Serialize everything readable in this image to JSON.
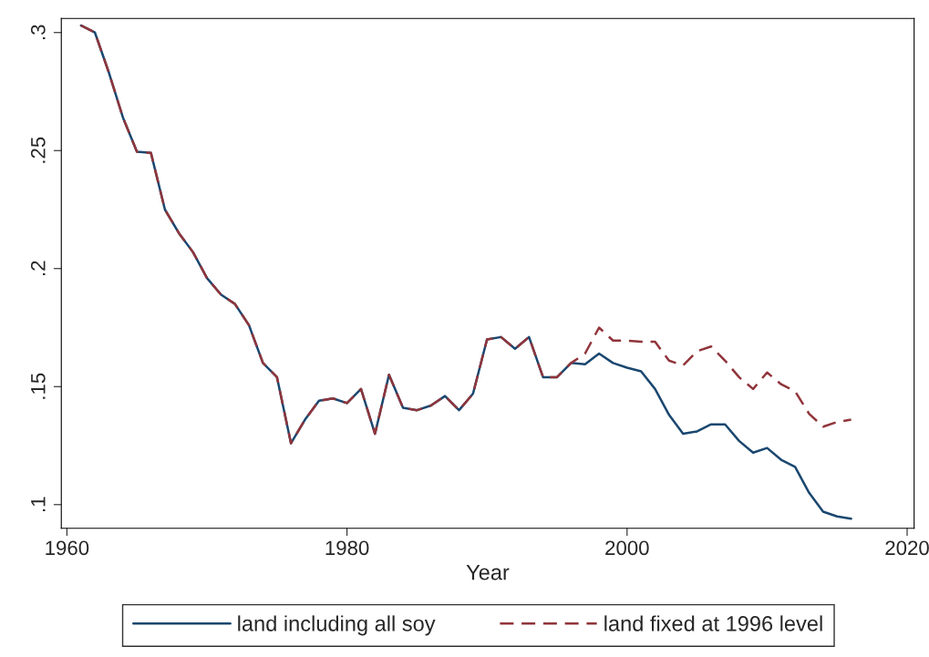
{
  "chart_data": {
    "type": "line",
    "xlabel": "Year",
    "x": [
      1961,
      1962,
      1963,
      1964,
      1965,
      1966,
      1967,
      1968,
      1969,
      1970,
      1971,
      1972,
      1973,
      1974,
      1975,
      1976,
      1977,
      1978,
      1979,
      1980,
      1981,
      1982,
      1983,
      1984,
      1985,
      1986,
      1987,
      1988,
      1989,
      1990,
      1991,
      1992,
      1993,
      1994,
      1995,
      1996,
      1997,
      1998,
      1999,
      2000,
      2001,
      2002,
      2003,
      2004,
      2005,
      2006,
      2007,
      2008,
      2009,
      2010,
      2011,
      2012,
      2013,
      2014,
      2015,
      2016
    ],
    "series": [
      {
        "name": "land including all soy",
        "color": "#1a476f",
        "line_style": "solid",
        "values": [
          0.303,
          0.3,
          0.283,
          0.264,
          0.2495,
          0.249,
          0.225,
          0.215,
          0.207,
          0.196,
          0.189,
          0.185,
          0.176,
          0.16,
          0.154,
          0.126,
          0.136,
          0.144,
          0.145,
          0.143,
          0.149,
          0.13,
          0.155,
          0.141,
          0.14,
          0.142,
          0.146,
          0.14,
          0.147,
          0.17,
          0.171,
          0.166,
          0.171,
          0.154,
          0.154,
          0.16,
          0.1595,
          0.164,
          0.16,
          0.158,
          0.1565,
          0.149,
          0.138,
          0.13,
          0.131,
          0.134,
          0.134,
          0.127,
          0.122,
          0.124,
          0.119,
          0.116,
          0.105,
          0.097,
          0.095,
          0.094
        ]
      },
      {
        "name": "land fixed at 1996 level",
        "color": "#90353b",
        "line_style": "dashed",
        "values": [
          0.303,
          0.3,
          0.283,
          0.264,
          0.2495,
          0.249,
          0.225,
          0.215,
          0.207,
          0.196,
          0.189,
          0.185,
          0.176,
          0.16,
          0.154,
          0.126,
          0.136,
          0.144,
          0.145,
          0.143,
          0.149,
          0.13,
          0.155,
          0.141,
          0.14,
          0.142,
          0.146,
          0.14,
          0.147,
          0.17,
          0.171,
          0.166,
          0.171,
          0.154,
          0.154,
          0.16,
          0.164,
          0.175,
          0.1695,
          0.1695,
          0.169,
          0.169,
          0.161,
          0.159,
          0.165,
          0.167,
          0.161,
          0.154,
          0.149,
          0.156,
          0.151,
          0.148,
          0.1385,
          0.133,
          0.135,
          0.136
        ]
      }
    ],
    "xlim": [
      1959.6,
      2020.5
    ],
    "xticks": [
      1960,
      1980,
      2000,
      2020
    ],
    "ylim": [
      0.09,
      0.306
    ],
    "yticks": [
      {
        "value": 0.1,
        "label": ".1"
      },
      {
        "value": 0.15,
        "label": ".15"
      },
      {
        "value": 0.2,
        "label": ".2"
      },
      {
        "value": 0.25,
        "label": ".25"
      },
      {
        "value": 0.3,
        "label": ".3"
      }
    ],
    "grid": false,
    "legend": "bottom"
  }
}
